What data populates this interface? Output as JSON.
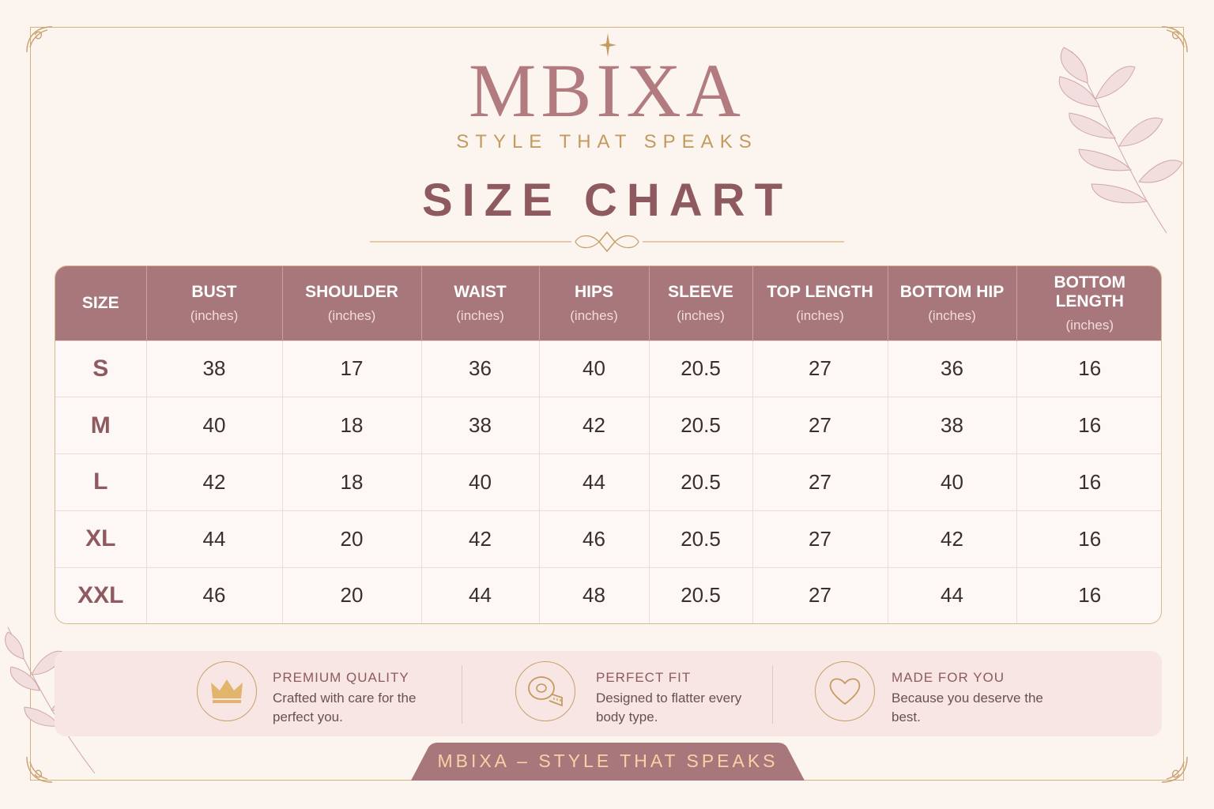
{
  "brand": {
    "name": "MBIXA",
    "tagline": "STYLE THAT SPEAKS"
  },
  "title": "SIZE CHART",
  "table": {
    "columns": [
      {
        "label": "SIZE",
        "unit": ""
      },
      {
        "label": "BUST",
        "unit": "(inches)"
      },
      {
        "label": "SHOULDER",
        "unit": "(inches)"
      },
      {
        "label": "WAIST",
        "unit": "(inches)"
      },
      {
        "label": "HIPS",
        "unit": "(inches)"
      },
      {
        "label": "SLEEVE",
        "unit": "(inches)"
      },
      {
        "label": "TOP LENGTH",
        "unit": "(inches)"
      },
      {
        "label": "BOTTOM HIP",
        "unit": "(inches)"
      },
      {
        "label": "BOTTOM LENGTH",
        "unit": "(inches)"
      }
    ],
    "rows": [
      [
        "S",
        "38",
        "17",
        "36",
        "40",
        "20.5",
        "27",
        "36",
        "16"
      ],
      [
        "M",
        "40",
        "18",
        "38",
        "42",
        "20.5",
        "27",
        "38",
        "16"
      ],
      [
        "L",
        "42",
        "18",
        "40",
        "44",
        "20.5",
        "27",
        "40",
        "16"
      ],
      [
        "XL",
        "44",
        "20",
        "42",
        "46",
        "20.5",
        "27",
        "42",
        "16"
      ],
      [
        "XXL",
        "46",
        "20",
        "44",
        "48",
        "20.5",
        "27",
        "44",
        "16"
      ]
    ]
  },
  "features": [
    {
      "icon": "crown-icon",
      "title": "PREMIUM QUALITY",
      "desc": "Crafted with care for the perfect you."
    },
    {
      "icon": "measuring-tape-icon",
      "title": "PERFECT FIT",
      "desc": "Designed to flatter every body type."
    },
    {
      "icon": "heart-icon",
      "title": "MADE FOR YOU",
      "desc": "Because you deserve the best."
    }
  ],
  "footer": {
    "banner": "MBIXA – STYLE THAT SPEAKS"
  },
  "colors": {
    "background": "#fbf4ef",
    "rose": "#a8777c",
    "gold": "#c49a5e",
    "title": "#8e5a5f"
  }
}
